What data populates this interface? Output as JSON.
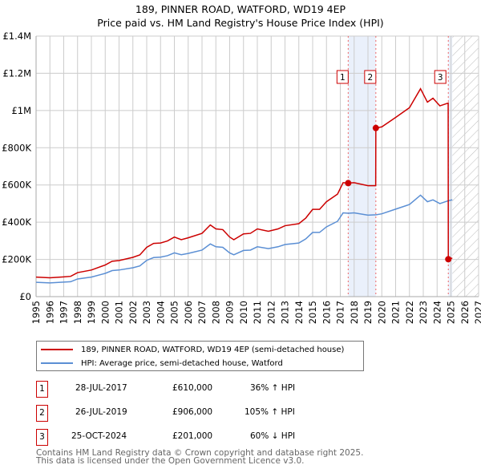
{
  "title": {
    "line1": "189, PINNER ROAD, WATFORD, WD19 4EP",
    "line2": "Price paid vs. HM Land Registry's House Price Index (HPI)"
  },
  "colors": {
    "property": "#cc0000",
    "hpi": "#5b8fd4",
    "shade": "#eaf0fb"
  },
  "chart_data": {
    "type": "line",
    "xlim": [
      1995,
      2027
    ],
    "ylim": [
      0,
      1400000
    ],
    "x_ticks": [
      "1995",
      "1996",
      "1997",
      "1998",
      "1999",
      "2000",
      "2001",
      "2002",
      "2003",
      "2004",
      "2005",
      "2006",
      "2007",
      "2008",
      "2009",
      "2010",
      "2011",
      "2012",
      "2013",
      "2014",
      "2015",
      "2016",
      "2017",
      "2018",
      "2019",
      "2020",
      "2021",
      "2022",
      "2023",
      "2024",
      "2025",
      "2026",
      "2027"
    ],
    "y_ticks": [
      {
        "v": 0,
        "label": "£0"
      },
      {
        "v": 200000,
        "label": "£200K"
      },
      {
        "v": 400000,
        "label": "£400K"
      },
      {
        "v": 600000,
        "label": "£600K"
      },
      {
        "v": 800000,
        "label": "£800K"
      },
      {
        "v": 1000000,
        "label": "£1M"
      },
      {
        "v": 1200000,
        "label": "£1.2M"
      },
      {
        "v": 1400000,
        "label": "£1.4M"
      }
    ],
    "grid": true,
    "forecast_hatch_from": 2025.1,
    "series": [
      {
        "name": "189, PINNER ROAD, WATFORD, WD19 4EP (semi-detached house)",
        "color": "#cc0000",
        "x": [
          1995,
          1996,
          1997,
          1997.5,
          1998,
          1999,
          2000,
          2000.5,
          2001,
          2002,
          2002.5,
          2003,
          2003.5,
          2004,
          2004.5,
          2005,
          2005.5,
          2006,
          2007,
          2007.6,
          2008,
          2008.5,
          2009,
          2009.3,
          2010,
          2010.5,
          2011,
          2011.8,
          2012.5,
          2013,
          2014,
          2014.5,
          2015,
          2015.5,
          2016,
          2016.8,
          2017.2,
          2017.57,
          2018,
          2019,
          2019.56,
          2019.57,
          2020,
          2021,
          2022,
          2022.8,
          2023.3,
          2023.7,
          2024.2,
          2024.8,
          2024.81,
          2025.1
        ],
        "y": [
          105000,
          101000,
          106000,
          109000,
          129000,
          143000,
          170000,
          190000,
          194000,
          211000,
          224000,
          265000,
          286000,
          288000,
          299000,
          320000,
          306000,
          316000,
          340000,
          385000,
          364000,
          360000,
          320000,
          306000,
          337000,
          340000,
          364000,
          351000,
          364000,
          381000,
          392000,
          422000,
          469000,
          469000,
          510000,
          551000,
          612000,
          610000,
          612000,
          596000,
          596000,
          906000,
          912000,
          963000,
          1015000,
          1117000,
          1045000,
          1066000,
          1025000,
          1040000,
          201000,
          207000
        ]
      },
      {
        "name": "HPI: Average price, semi-detached house, Watford",
        "color": "#5b8fd4",
        "x": [
          1995,
          1996,
          1997,
          1997.5,
          1998,
          1999,
          2000,
          2000.5,
          2001,
          2002,
          2002.5,
          2003,
          2003.5,
          2004,
          2004.5,
          2005,
          2005.5,
          2006,
          2007,
          2007.6,
          2008,
          2008.5,
          2009,
          2009.3,
          2010,
          2010.5,
          2011,
          2011.8,
          2012.5,
          2013,
          2014,
          2014.5,
          2015,
          2015.5,
          2016,
          2016.8,
          2017.2,
          2017.6,
          2018,
          2019,
          2019.6,
          2020,
          2021,
          2022,
          2022.8,
          2023.3,
          2023.7,
          2024.2,
          2024.8,
          2025.1
        ],
        "y": [
          77000,
          74000,
          78000,
          80000,
          95000,
          105000,
          125000,
          140000,
          143000,
          155000,
          165000,
          195000,
          210000,
          212000,
          220000,
          235000,
          225000,
          232000,
          250000,
          283000,
          268000,
          265000,
          235000,
          225000,
          248000,
          250000,
          268000,
          258000,
          268000,
          280000,
          288000,
          310000,
          345000,
          345000,
          375000,
          405000,
          450000,
          448000,
          450000,
          438000,
          440000,
          445000,
          470000,
          495000,
          545000,
          510000,
          520000,
          500000,
          515000,
          520000
        ]
      }
    ],
    "sales": [
      {
        "id": "1",
        "x": 2017.57,
        "y": 610000
      },
      {
        "id": "2",
        "x": 2019.57,
        "y": 906000
      },
      {
        "id": "3",
        "x": 2024.81,
        "y": 201000
      }
    ]
  },
  "legend": {
    "property": "189, PINNER ROAD, WATFORD, WD19 4EP (semi-detached house)",
    "hpi": "HPI: Average price, semi-detached house, Watford"
  },
  "table": [
    {
      "id": "1",
      "date": "28-JUL-2017",
      "price": "£610,000",
      "hpi": "36% ↑ HPI"
    },
    {
      "id": "2",
      "date": "26-JUL-2019",
      "price": "£906,000",
      "hpi": "105% ↑ HPI"
    },
    {
      "id": "3",
      "date": "25-OCT-2024",
      "price": "£201,000",
      "hpi": "60% ↓ HPI"
    }
  ],
  "footer": {
    "line1": "Contains HM Land Registry data © Crown copyright and database right 2025.",
    "line2": "This data is licensed under the Open Government Licence v3.0."
  }
}
